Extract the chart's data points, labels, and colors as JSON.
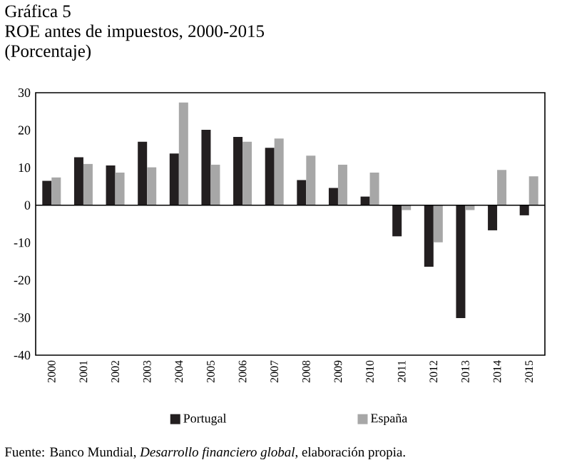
{
  "chart_data": {
    "type": "bar",
    "title": "Gráfica 5",
    "subtitle": "ROE antes de impuestos, 2000-2015",
    "ylabel": "(Porcentaje)",
    "categories": [
      "2000",
      "2001",
      "2002",
      "2003",
      "2004",
      "2005",
      "2006",
      "2007",
      "2008",
      "2009",
      "2010",
      "2011",
      "2012",
      "2013",
      "2014",
      "2015"
    ],
    "series": [
      {
        "name": "Portugal",
        "color": "#231f20",
        "values": [
          6.5,
          12.8,
          10.6,
          16.9,
          13.8,
          20.1,
          18.2,
          15.3,
          6.7,
          4.6,
          2.3,
          -8.3,
          -16.4,
          -30.1,
          -6.7,
          -2.7
        ]
      },
      {
        "name": "España",
        "color": "#a7a7a7",
        "values": [
          7.4,
          11.0,
          8.7,
          10.1,
          27.4,
          10.8,
          16.9,
          17.8,
          13.2,
          10.8,
          8.7,
          -1.3,
          -9.9,
          -1.3,
          9.4,
          7.7
        ]
      }
    ],
    "ylim": [
      -40,
      30
    ],
    "yticks": [
      -40,
      -30,
      -20,
      -10,
      0,
      10,
      20,
      30
    ],
    "legend": "bottom",
    "annotations": [
      "Fuente: Banco Mundial, *Desarrollo financiero global*, elaboración propia."
    ]
  }
}
